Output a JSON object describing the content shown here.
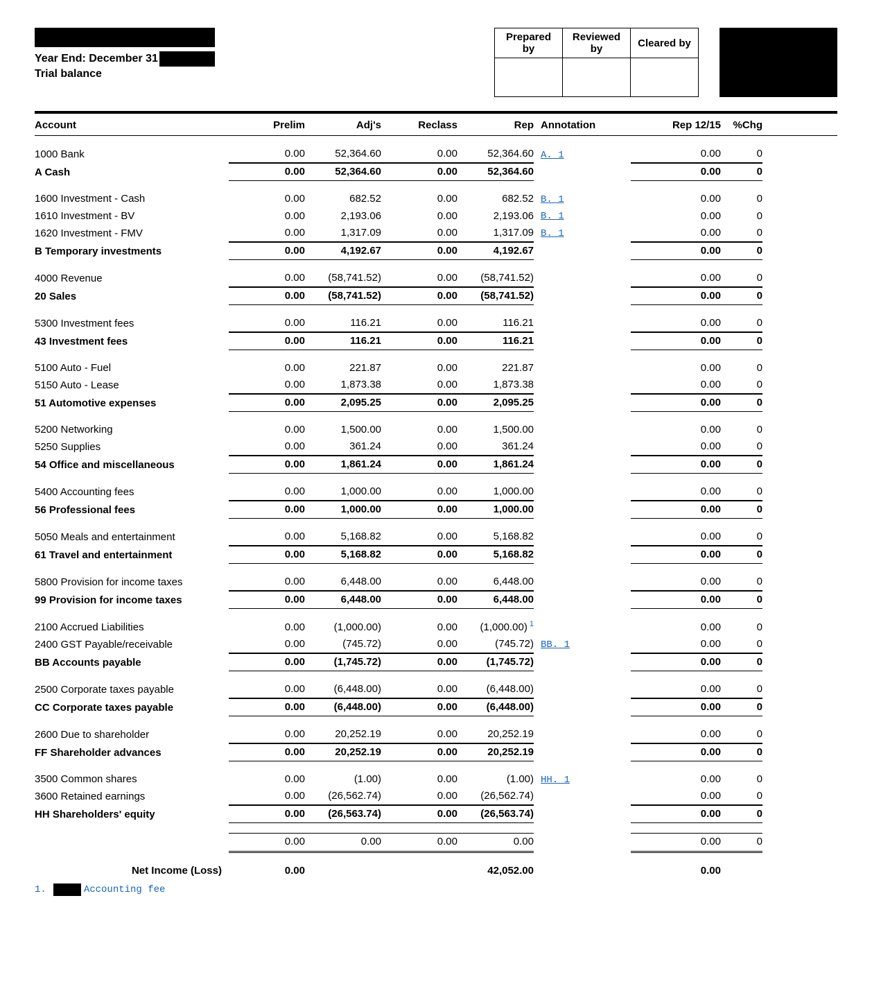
{
  "header": {
    "yearEndLabel": "Year End: December 31",
    "subtitle": "Trial balance",
    "signoff": [
      "Prepared by",
      "Reviewed by",
      "Cleared by"
    ]
  },
  "columns": {
    "account": "Account",
    "prelim": "Prelim",
    "adjs": "Adj's",
    "reclass": "Reclass",
    "rep": "Rep",
    "annotation": "Annotation",
    "rep1215": "Rep 12/15",
    "pctChg": "%Chg"
  },
  "groups": [
    {
      "rows": [
        {
          "acct": "1000 Bank",
          "prelim": "0.00",
          "adjs": "52,364.60",
          "reclass": "0.00",
          "rep": "52,364.60",
          "ann": "A. 1",
          "r1215": "0.00",
          "chg": "0",
          "last": true
        }
      ],
      "total": {
        "acct": "A   Cash",
        "prelim": "0.00",
        "adjs": "52,364.60",
        "reclass": "0.00",
        "rep": "52,364.60",
        "r1215": "0.00",
        "chg": "0"
      }
    },
    {
      "rows": [
        {
          "acct": "1600 Investment - Cash",
          "prelim": "0.00",
          "adjs": "682.52",
          "reclass": "0.00",
          "rep": "682.52",
          "ann": "B. 1",
          "r1215": "0.00",
          "chg": "0"
        },
        {
          "acct": "1610 Investment - BV",
          "prelim": "0.00",
          "adjs": "2,193.06",
          "reclass": "0.00",
          "rep": "2,193.06",
          "ann": "B. 1",
          "r1215": "0.00",
          "chg": "0"
        },
        {
          "acct": "1620 Investment - FMV",
          "prelim": "0.00",
          "adjs": "1,317.09",
          "reclass": "0.00",
          "rep": "1,317.09",
          "ann": "B. 1",
          "r1215": "0.00",
          "chg": "0",
          "last": true
        }
      ],
      "total": {
        "acct": "B   Temporary investments",
        "prelim": "0.00",
        "adjs": "4,192.67",
        "reclass": "0.00",
        "rep": "4,192.67",
        "r1215": "0.00",
        "chg": "0"
      }
    },
    {
      "rows": [
        {
          "acct": "4000 Revenue",
          "prelim": "0.00",
          "adjs": "(58,741.52)",
          "reclass": "0.00",
          "rep": "(58,741.52)",
          "r1215": "0.00",
          "chg": "0",
          "last": true
        }
      ],
      "total": {
        "acct": "20   Sales",
        "prelim": "0.00",
        "adjs": "(58,741.52)",
        "reclass": "0.00",
        "rep": "(58,741.52)",
        "r1215": "0.00",
        "chg": "0"
      }
    },
    {
      "rows": [
        {
          "acct": "5300 Investment fees",
          "prelim": "0.00",
          "adjs": "116.21",
          "reclass": "0.00",
          "rep": "116.21",
          "r1215": "0.00",
          "chg": "0",
          "last": true
        }
      ],
      "total": {
        "acct": "43   Investment fees",
        "prelim": "0.00",
        "adjs": "116.21",
        "reclass": "0.00",
        "rep": "116.21",
        "r1215": "0.00",
        "chg": "0"
      }
    },
    {
      "rows": [
        {
          "acct": "5100 Auto - Fuel",
          "prelim": "0.00",
          "adjs": "221.87",
          "reclass": "0.00",
          "rep": "221.87",
          "r1215": "0.00",
          "chg": "0"
        },
        {
          "acct": "5150 Auto - Lease",
          "prelim": "0.00",
          "adjs": "1,873.38",
          "reclass": "0.00",
          "rep": "1,873.38",
          "r1215": "0.00",
          "chg": "0",
          "last": true
        }
      ],
      "total": {
        "acct": "51   Automotive expenses",
        "prelim": "0.00",
        "adjs": "2,095.25",
        "reclass": "0.00",
        "rep": "2,095.25",
        "r1215": "0.00",
        "chg": "0"
      }
    },
    {
      "rows": [
        {
          "acct": "5200 Networking",
          "prelim": "0.00",
          "adjs": "1,500.00",
          "reclass": "0.00",
          "rep": "1,500.00",
          "r1215": "0.00",
          "chg": "0"
        },
        {
          "acct": "5250 Supplies",
          "prelim": "0.00",
          "adjs": "361.24",
          "reclass": "0.00",
          "rep": "361.24",
          "r1215": "0.00",
          "chg": "0",
          "last": true
        }
      ],
      "total": {
        "acct": "54   Office and miscellaneous",
        "prelim": "0.00",
        "adjs": "1,861.24",
        "reclass": "0.00",
        "rep": "1,861.24",
        "r1215": "0.00",
        "chg": "0"
      }
    },
    {
      "rows": [
        {
          "acct": "5400 Accounting fees",
          "prelim": "0.00",
          "adjs": "1,000.00",
          "reclass": "0.00",
          "rep": "1,000.00",
          "r1215": "0.00",
          "chg": "0",
          "last": true
        }
      ],
      "total": {
        "acct": "56   Professional fees",
        "prelim": "0.00",
        "adjs": "1,000.00",
        "reclass": "0.00",
        "rep": "1,000.00",
        "r1215": "0.00",
        "chg": "0"
      }
    },
    {
      "rows": [
        {
          "acct": "5050 Meals and entertainment",
          "prelim": "0.00",
          "adjs": "5,168.82",
          "reclass": "0.00",
          "rep": "5,168.82",
          "r1215": "0.00",
          "chg": "0",
          "last": true
        }
      ],
      "total": {
        "acct": "61   Travel and entertainment",
        "prelim": "0.00",
        "adjs": "5,168.82",
        "reclass": "0.00",
        "rep": "5,168.82",
        "r1215": "0.00",
        "chg": "0"
      }
    },
    {
      "rows": [
        {
          "acct": "5800 Provision for income taxes",
          "prelim": "0.00",
          "adjs": "6,448.00",
          "reclass": "0.00",
          "rep": "6,448.00",
          "r1215": "0.00",
          "chg": "0",
          "last": true
        }
      ],
      "total": {
        "acct": "99   Provision for income taxes",
        "prelim": "0.00",
        "adjs": "6,448.00",
        "reclass": "0.00",
        "rep": "6,448.00",
        "r1215": "0.00",
        "chg": "0"
      }
    },
    {
      "rows": [
        {
          "acct": "2100 Accrued Liabilities",
          "prelim": "0.00",
          "adjs": "(1,000.00)",
          "reclass": "0.00",
          "rep": "(1,000.00)",
          "sup": "1",
          "r1215": "0.00",
          "chg": "0"
        },
        {
          "acct": "2400 GST Payable/receivable",
          "prelim": "0.00",
          "adjs": "(745.72)",
          "reclass": "0.00",
          "rep": "(745.72)",
          "ann": "BB. 1",
          "r1215": "0.00",
          "chg": "0",
          "last": true
        }
      ],
      "total": {
        "acct": "BB   Accounts payable",
        "prelim": "0.00",
        "adjs": "(1,745.72)",
        "reclass": "0.00",
        "rep": "(1,745.72)",
        "r1215": "0.00",
        "chg": "0"
      }
    },
    {
      "rows": [
        {
          "acct": "2500 Corporate taxes payable",
          "prelim": "0.00",
          "adjs": "(6,448.00)",
          "reclass": "0.00",
          "rep": "(6,448.00)",
          "r1215": "0.00",
          "chg": "0",
          "last": true
        }
      ],
      "total": {
        "acct": "CC   Corporate taxes payable",
        "prelim": "0.00",
        "adjs": "(6,448.00)",
        "reclass": "0.00",
        "rep": "(6,448.00)",
        "r1215": "0.00",
        "chg": "0"
      }
    },
    {
      "rows": [
        {
          "acct": "2600 Due to shareholder",
          "prelim": "0.00",
          "adjs": "20,252.19",
          "reclass": "0.00",
          "rep": "20,252.19",
          "r1215": "0.00",
          "chg": "0",
          "last": true
        }
      ],
      "total": {
        "acct": "FF   Shareholder advances",
        "prelim": "0.00",
        "adjs": "20,252.19",
        "reclass": "0.00",
        "rep": "20,252.19",
        "r1215": "0.00",
        "chg": "0"
      }
    },
    {
      "rows": [
        {
          "acct": "3500 Common shares",
          "prelim": "0.00",
          "adjs": "(1.00)",
          "reclass": "0.00",
          "rep": "(1.00)",
          "ann": "HH. 1",
          "r1215": "0.00",
          "chg": "0"
        },
        {
          "acct": "3600 Retained earnings",
          "prelim": "0.00",
          "adjs": "(26,562.74)",
          "reclass": "0.00",
          "rep": "(26,562.74)",
          "r1215": "0.00",
          "chg": "0",
          "last": true
        }
      ],
      "total": {
        "acct": "HH   Shareholders' equity",
        "prelim": "0.00",
        "adjs": "(26,563.74)",
        "reclass": "0.00",
        "rep": "(26,563.74)",
        "r1215": "0.00",
        "chg": "0"
      }
    }
  ],
  "grandTotal": {
    "prelim": "0.00",
    "adjs": "0.00",
    "reclass": "0.00",
    "rep": "0.00",
    "r1215": "0.00",
    "chg": "0"
  },
  "netIncome": {
    "label": "Net Income (Loss)",
    "prelim": "0.00",
    "rep": "42,052.00",
    "r1215": "0.00"
  },
  "footnote": {
    "num": "1.",
    "text": "Accounting fee"
  }
}
